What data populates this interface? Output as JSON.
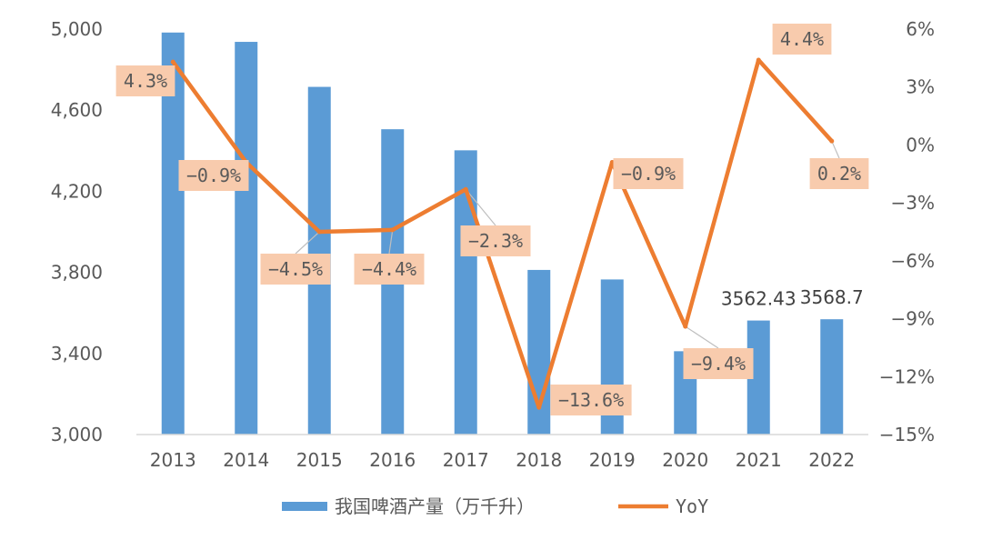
{
  "chart_data": {
    "type": "bar+line",
    "categories": [
      "2013",
      "2014",
      "2015",
      "2016",
      "2017",
      "2018",
      "2019",
      "2020",
      "2021",
      "2022"
    ],
    "series": [
      {
        "name": "我国啤酒产量（万千升）",
        "type": "bar",
        "axis": "left",
        "color": "#5B9BD5",
        "values": [
          4983,
          4937,
          4715,
          4506,
          4402,
          3812,
          3765,
          3411,
          3562.43,
          3568.7
        ],
        "data_labels": [
          "",
          "",
          "",
          "",
          "",
          "",
          "",
          "",
          "3562.43",
          "3568.7"
        ]
      },
      {
        "name": "YoY",
        "type": "line",
        "axis": "right",
        "color": "#ED7D31",
        "values": [
          4.3,
          -0.9,
          -4.5,
          -4.4,
          -2.3,
          -13.6,
          -0.9,
          -9.4,
          4.4,
          0.2
        ],
        "data_labels": [
          "4.3%",
          "−0.9%",
          "−4.5%",
          "−4.4%",
          "−2.3%",
          "−13.6%",
          "−0.9%",
          "−9.4%",
          "4.4%",
          "0.2%"
        ]
      }
    ],
    "y_left": {
      "min": 3000,
      "max": 5000,
      "ticks": [
        3000,
        3400,
        3800,
        4200,
        4600,
        5000
      ],
      "tick_labels": [
        "3,000",
        "3,400",
        "3,800",
        "4,200",
        "4,600",
        "5,000"
      ]
    },
    "y_right": {
      "min": -15,
      "max": 6,
      "ticks": [
        -15,
        -12,
        -9,
        -6,
        -3,
        0,
        3,
        6
      ],
      "tick_labels": [
        "−15%",
        "−12%",
        "−9%",
        "−6%",
        "−3%",
        "0%",
        "3%",
        "6%"
      ]
    },
    "grid": false,
    "legend_position": "bottom",
    "label_box_color": "#F8CBAD"
  }
}
